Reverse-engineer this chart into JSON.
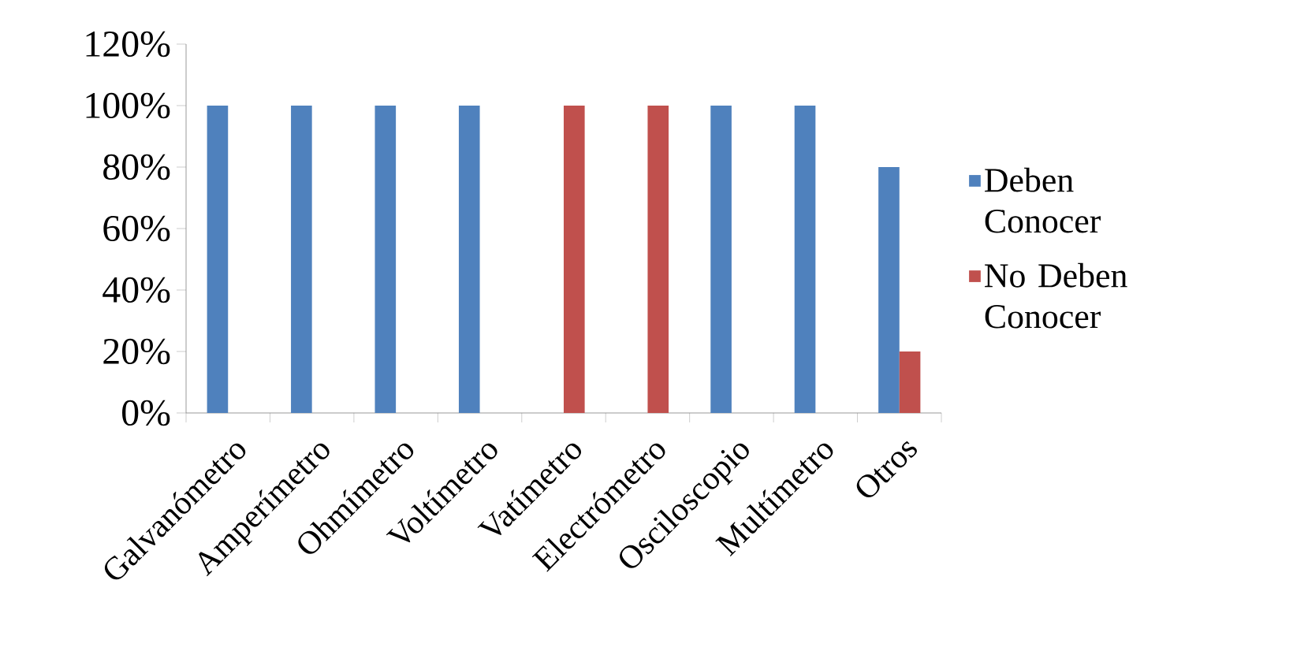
{
  "chart_data": {
    "type": "bar",
    "categories": [
      "Galvanómetro",
      "Amperímetro",
      "Ohmímetro",
      "Voltímetro",
      "Vatímetro",
      "Electrómetro",
      "Osciloscopio",
      "Multímetro",
      "Otros"
    ],
    "series": [
      {
        "name": "Deben Conocer",
        "color": "#4f81bd",
        "values": [
          100,
          100,
          100,
          100,
          0,
          0,
          100,
          100,
          80
        ]
      },
      {
        "name": "No Deben Conocer",
        "color": "#c0504d",
        "values": [
          0,
          0,
          0,
          0,
          100,
          100,
          0,
          0,
          20
        ]
      }
    ],
    "ylim": [
      0,
      120
    ],
    "yticks": [
      {
        "value": 0,
        "label": "0%"
      },
      {
        "value": 20,
        "label": "20%"
      },
      {
        "value": 40,
        "label": "40%"
      },
      {
        "value": 60,
        "label": "60%"
      },
      {
        "value": 80,
        "label": "80%"
      },
      {
        "value": 100,
        "label": "100%"
      },
      {
        "value": 120,
        "label": "120%"
      }
    ],
    "legend": "right"
  }
}
